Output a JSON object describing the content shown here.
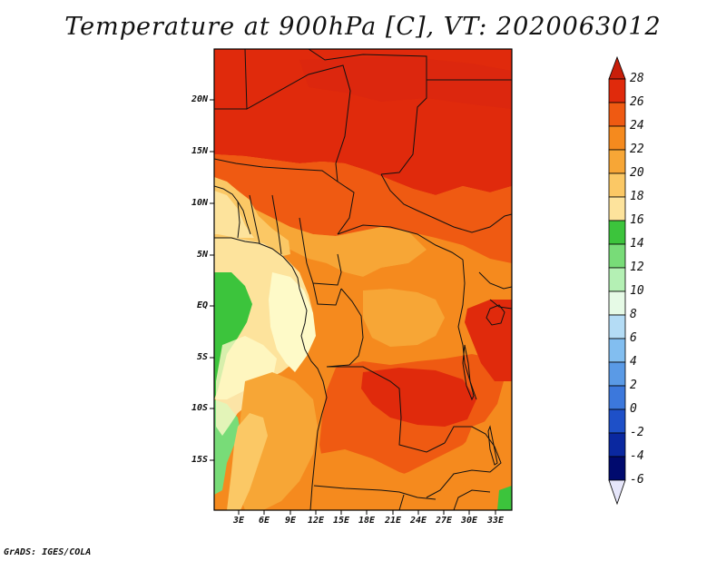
{
  "title": "Temperature at 900hPa [C], VT: 2020063012",
  "footer": "GrADS: IGES/COLA",
  "lat_ticks": [
    "20N",
    "15N",
    "10N",
    "5N",
    "EQ",
    "5S",
    "10S",
    "15S"
  ],
  "lon_ticks": [
    "3E",
    "6E",
    "9E",
    "12E",
    "15E",
    "18E",
    "21E",
    "24E",
    "27E",
    "30E",
    "33E"
  ],
  "colorbar": {
    "labels": [
      "28",
      "26",
      "24",
      "22",
      "20",
      "18",
      "16",
      "14",
      "12",
      "10",
      "8",
      "6",
      "4",
      "2",
      "0",
      "-2",
      "-4",
      "-6"
    ],
    "colors": {
      "above_28": "#c81e0a",
      "26_28": "#e02a0c",
      "24_26": "#ef5a12",
      "22_24": "#f58a1e",
      "20_22": "#f7a636",
      "18_20": "#fbc865",
      "16_18": "#fde39c",
      "14_16": "#fefac8",
      "12_14": "#3cc43c",
      "10_12": "#78dc78",
      "8_10": "#b4f0b4",
      "6_8": "#e6fae6",
      "4_6": "#b4dcf5",
      "2_4": "#82bef0",
      "0_2": "#5a9ae6",
      "m2_0": "#3c78dc",
      "m4_m2": "#1e50c8",
      "m6_m4": "#0a28a0",
      "below_m6": "#000a6e",
      "below_arrow": "#e6e6fa"
    }
  }
}
